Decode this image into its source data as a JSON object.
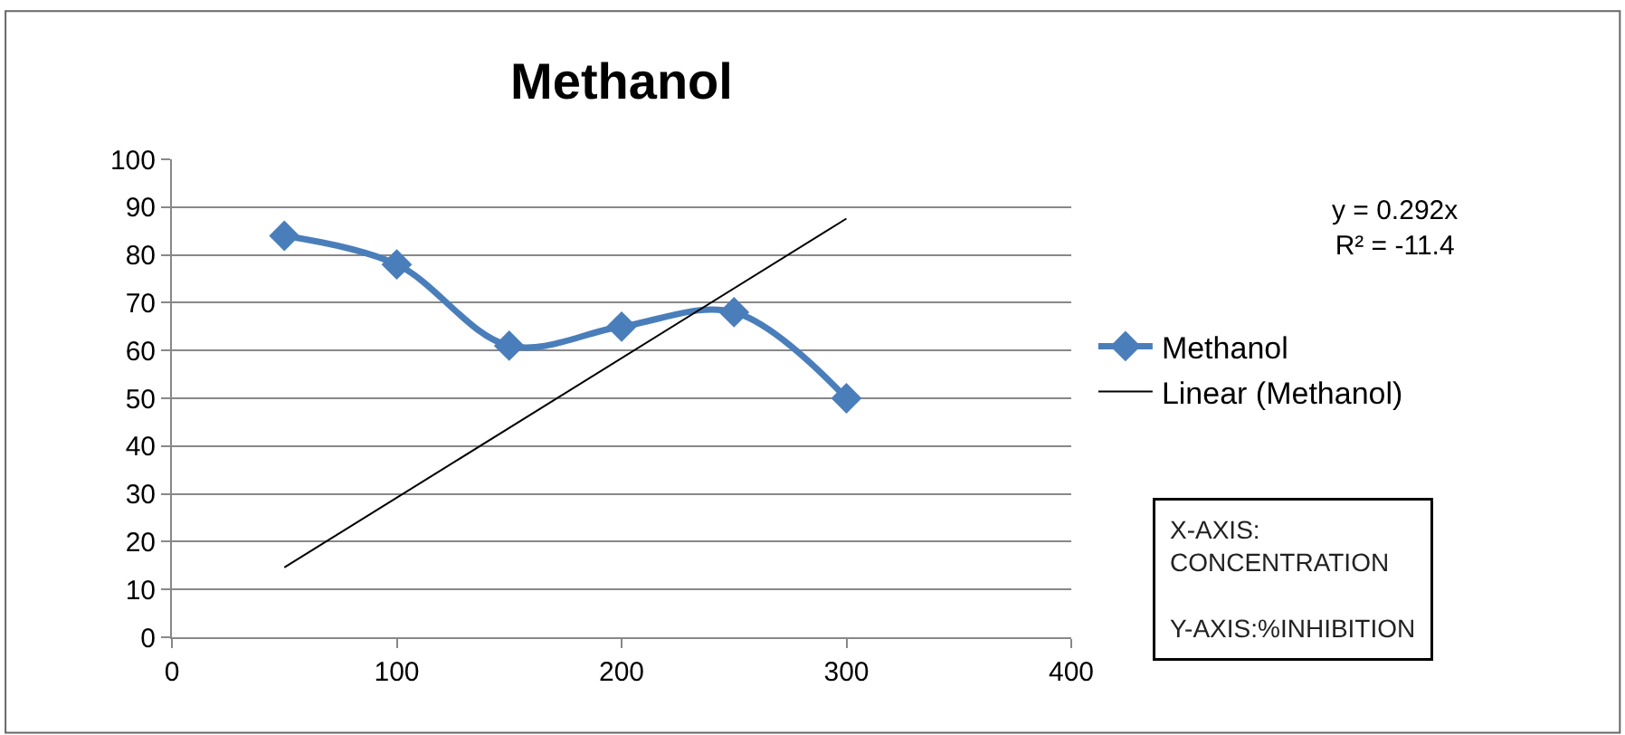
{
  "chart_data": {
    "type": "line",
    "title": "Methanol",
    "x": [
      50,
      100,
      150,
      200,
      250,
      300
    ],
    "series": [
      {
        "name": "Methanol",
        "color": "#4a7ebb",
        "values": [
          84,
          78,
          61,
          65,
          68,
          50
        ],
        "marker": "diamond"
      },
      {
        "name": "Linear (Methanol)",
        "type": "line",
        "color": "#000000",
        "x": [
          50,
          300
        ],
        "values": [
          14.6,
          87.6
        ],
        "marker": "none"
      }
    ],
    "xlim": [
      0,
      400
    ],
    "xticks": [
      0,
      100,
      200,
      300,
      400
    ],
    "ylim": [
      0,
      100
    ],
    "yticks": [
      0,
      10,
      20,
      30,
      40,
      50,
      60,
      70,
      80,
      90,
      100
    ],
    "grid": "y",
    "legend": "right",
    "annotations": [
      "y = 0.292x\nR² = -11.4",
      "X-AXIS:\nCONCENTRATION\n\nY-AXIS:%INHIBITION"
    ]
  }
}
